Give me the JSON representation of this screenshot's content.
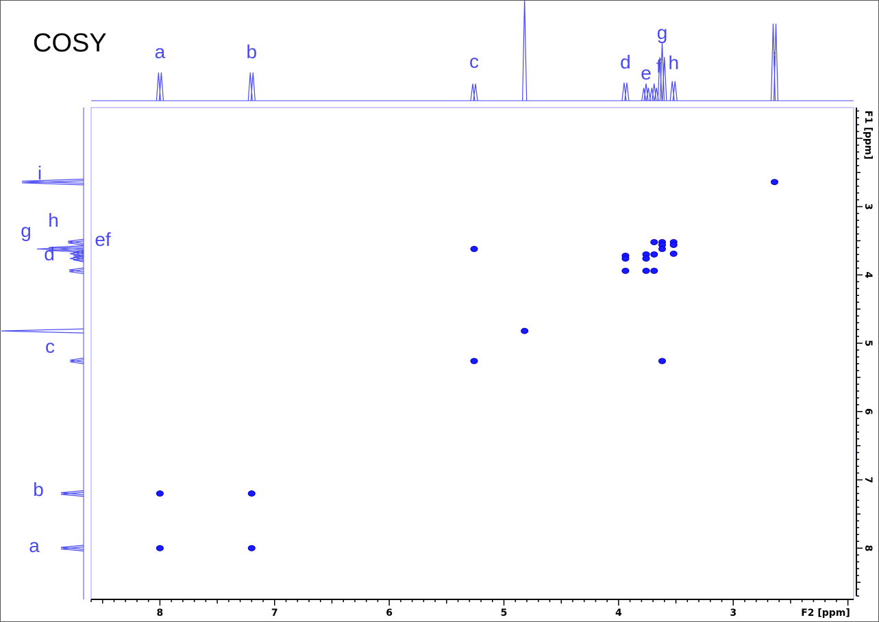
{
  "chart_data": {
    "type": "scatter",
    "title": "COSY",
    "xlabel": "F2 [ppm]",
    "ylabel": "F1 [ppm]",
    "xlim": [
      8.6,
      1.95
    ],
    "ylim": [
      1.55,
      8.75
    ],
    "x_ticks": [
      "8",
      "7",
      "6",
      "5",
      "4",
      "3"
    ],
    "y_ticks": [
      "3",
      "4",
      "5",
      "6",
      "7",
      "8"
    ],
    "peaks": [
      {
        "label": "a",
        "ppm": 8.0
      },
      {
        "label": "b",
        "ppm": 7.2
      },
      {
        "label": "c",
        "ppm": 5.26
      },
      {
        "label": "d",
        "ppm": 3.94
      },
      {
        "label": "e",
        "ppm": 3.76
      },
      {
        "label": "f",
        "ppm": 3.69
      },
      {
        "label": "g",
        "ppm": 3.62
      },
      {
        "label": "h",
        "ppm": 3.52
      },
      {
        "label": "i",
        "ppm": 2.64
      }
    ],
    "side_labels": [
      "i",
      "h",
      "g",
      "ef",
      "d",
      "c",
      "b",
      "a"
    ],
    "cross_peaks": [
      {
        "x": 2.64,
        "y": 2.64
      },
      {
        "x": 5.26,
        "y": 3.62
      },
      {
        "x": 3.69,
        "y": 3.52
      },
      {
        "x": 3.62,
        "y": 3.52
      },
      {
        "x": 3.62,
        "y": 3.56
      },
      {
        "x": 3.52,
        "y": 3.52
      },
      {
        "x": 3.52,
        "y": 3.56
      },
      {
        "x": 3.62,
        "y": 3.62
      },
      {
        "x": 3.52,
        "y": 3.69
      },
      {
        "x": 3.94,
        "y": 3.72
      },
      {
        "x": 3.94,
        "y": 3.76
      },
      {
        "x": 3.76,
        "y": 3.7
      },
      {
        "x": 3.76,
        "y": 3.76
      },
      {
        "x": 3.69,
        "y": 3.7
      },
      {
        "x": 3.94,
        "y": 3.94
      },
      {
        "x": 3.76,
        "y": 3.94
      },
      {
        "x": 3.69,
        "y": 3.94
      },
      {
        "x": 4.82,
        "y": 4.82
      },
      {
        "x": 5.26,
        "y": 5.26
      },
      {
        "x": 3.62,
        "y": 5.26
      },
      {
        "x": 8.0,
        "y": 7.2
      },
      {
        "x": 7.2,
        "y": 7.2
      },
      {
        "x": 8.0,
        "y": 8.0
      },
      {
        "x": 7.2,
        "y": 8.0
      }
    ],
    "color": "#1a1aff",
    "trace_color": "#4a4af0",
    "grid": false
  }
}
